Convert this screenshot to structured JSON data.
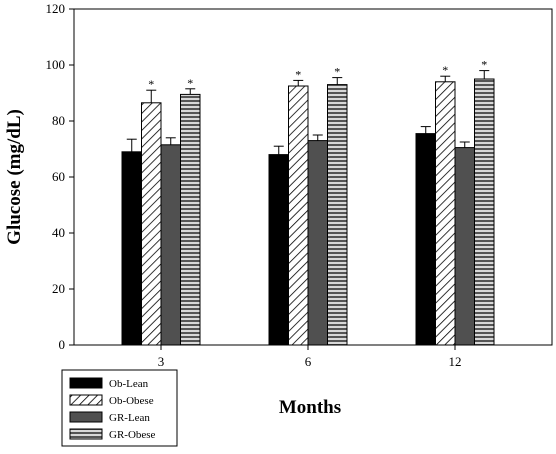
{
  "chart_data": {
    "type": "bar",
    "title": "",
    "xlabel": "Months",
    "ylabel": "Glucose (mg/dL)",
    "ylim": [
      0,
      120
    ],
    "yticks": [
      0,
      20,
      40,
      60,
      80,
      100,
      120
    ],
    "categories": [
      "3",
      "6",
      "12"
    ],
    "grid": false,
    "legend_position": "bottom-left",
    "significance_marker": "*",
    "series": [
      {
        "name": "Ob-Lean",
        "values": [
          69,
          68,
          75.5
        ],
        "errors": [
          4.5,
          3.0,
          2.5
        ],
        "significant": [
          false,
          false,
          false
        ],
        "pattern": "solid-black"
      },
      {
        "name": "Ob-Obese",
        "values": [
          86.5,
          92.5,
          94
        ],
        "errors": [
          4.5,
          2.0,
          2.0
        ],
        "significant": [
          true,
          true,
          true
        ],
        "pattern": "diagonal-hatch"
      },
      {
        "name": "GR-Lean",
        "values": [
          71.5,
          73,
          70.5
        ],
        "errors": [
          2.5,
          2.0,
          2.0
        ],
        "significant": [
          false,
          false,
          false
        ],
        "pattern": "solid-darkgray"
      },
      {
        "name": "GR-Obese",
        "values": [
          89.5,
          93,
          95
        ],
        "errors": [
          2.0,
          2.5,
          3.0
        ],
        "significant": [
          true,
          true,
          true
        ],
        "pattern": "horizontal-stripes"
      }
    ]
  }
}
